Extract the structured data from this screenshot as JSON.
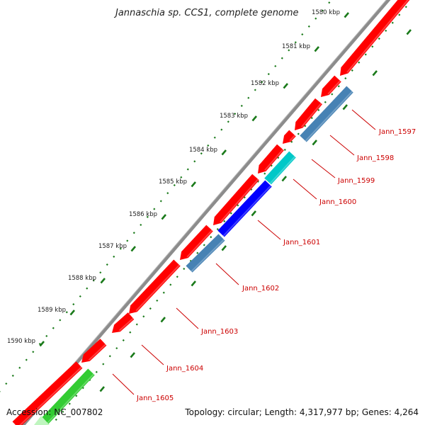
{
  "title": "Jannaschia sp. CCS1, complete genome",
  "accession": "Accession: NC_007802",
  "stats": "Topology: circular; Length: 4,317,977 bp; Genes: 4,264",
  "colors": {
    "backbone": "#8c8c8c",
    "forward_gene": "#ff0000",
    "reverse_steelblue": "#4682b4",
    "reverse_cyan": "#00c8c8",
    "reverse_blue": "#0000ff",
    "reverse_green": "#33cc33",
    "ticks": "#1a7a1a",
    "gene_label": "#cc0000"
  },
  "ticks": [
    {
      "label": "1580 kbp"
    },
    {
      "label": "1581 kbp"
    },
    {
      "label": "1582 kbp"
    },
    {
      "label": "1583 kbp"
    },
    {
      "label": "1584 kbp"
    },
    {
      "label": "1585 kbp"
    },
    {
      "label": "1586 kbp"
    },
    {
      "label": "1587 kbp"
    },
    {
      "label": "1588 kbp"
    },
    {
      "label": "1589 kbp"
    },
    {
      "label": "1590 kbp"
    }
  ],
  "genes": [
    {
      "label": "Jann_1597"
    },
    {
      "label": "Jann_1598"
    },
    {
      "label": "Jann_1599"
    },
    {
      "label": "Jann_1600"
    },
    {
      "label": "Jann_1601"
    },
    {
      "label": "Jann_1602"
    },
    {
      "label": "Jann_1603"
    },
    {
      "label": "Jann_1604"
    },
    {
      "label": "Jann_1605"
    }
  ]
}
